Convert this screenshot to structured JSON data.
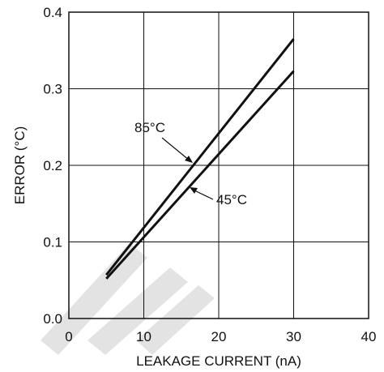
{
  "chart_data": {
    "type": "line",
    "title": "",
    "xlabel": "LEAKAGE CURRENT (nA)",
    "ylabel": "ERROR (°C)",
    "xlim": [
      0,
      40
    ],
    "ylim": [
      0,
      0.4
    ],
    "x_ticks": [
      "0",
      "10",
      "20",
      "30",
      "40"
    ],
    "y_ticks": [
      "0.0",
      "0.1",
      "0.2",
      "0.3",
      "0.4"
    ],
    "grid": true,
    "series": [
      {
        "name": "85°C",
        "x": [
          5,
          30
        ],
        "y": [
          0.057,
          0.365
        ]
      },
      {
        "name": "45°C",
        "x": [
          5,
          30
        ],
        "y": [
          0.052,
          0.323
        ]
      }
    ],
    "annotations": [
      {
        "text": "85°C",
        "series": "85°C"
      },
      {
        "text": "45°C",
        "series": "45°C"
      }
    ],
    "colors": {
      "line": "#111111",
      "grid": "#111111",
      "watermark": "#d9d9d9"
    }
  }
}
